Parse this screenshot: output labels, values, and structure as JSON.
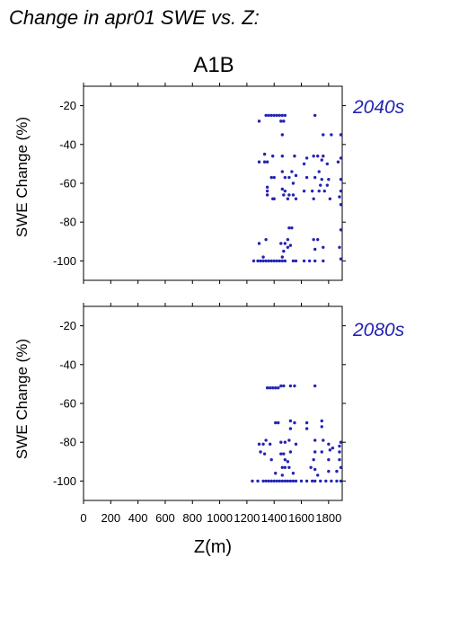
{
  "figure": {
    "suptitle": "Change in apr01 SWE vs. Z:",
    "scenario": "A1B",
    "xlabel": "Z(m)",
    "ylabel": "SWE Change (%)",
    "accent_color": "#2323b4"
  },
  "chart_data": [
    {
      "type": "scatter",
      "label": "2040s",
      "xlim": [
        0,
        1900
      ],
      "ylim": [
        -110,
        -10
      ],
      "xticks": [
        0,
        200,
        400,
        600,
        800,
        1000,
        1200,
        1400,
        1600,
        1800
      ],
      "yticks": [
        -20,
        -40,
        -60,
        -80,
        -100
      ],
      "points": [
        [
          1340,
          -25
        ],
        [
          1360,
          -25
        ],
        [
          1380,
          -25
        ],
        [
          1400,
          -25
        ],
        [
          1420,
          -25
        ],
        [
          1440,
          -25
        ],
        [
          1460,
          -25
        ],
        [
          1480,
          -25
        ],
        [
          1700,
          -25
        ],
        [
          1290,
          -28
        ],
        [
          1450,
          -28
        ],
        [
          1470,
          -28
        ],
        [
          1460,
          -35
        ],
        [
          1760,
          -35
        ],
        [
          1820,
          -35
        ],
        [
          1890,
          -35
        ],
        [
          1330,
          -45
        ],
        [
          1390,
          -46
        ],
        [
          1460,
          -46
        ],
        [
          1550,
          -46
        ],
        [
          1690,
          -46
        ],
        [
          1720,
          -46
        ],
        [
          1760,
          -46
        ],
        [
          1640,
          -47
        ],
        [
          1750,
          -48
        ],
        [
          1290,
          -49
        ],
        [
          1330,
          -49
        ],
        [
          1350,
          -49
        ],
        [
          1620,
          -50
        ],
        [
          1790,
          -50
        ],
        [
          1870,
          -49
        ],
        [
          1890,
          -47
        ],
        [
          1460,
          -54
        ],
        [
          1530,
          -54
        ],
        [
          1730,
          -54
        ],
        [
          1560,
          -56
        ],
        [
          1380,
          -57
        ],
        [
          1400,
          -57
        ],
        [
          1480,
          -57
        ],
        [
          1510,
          -57
        ],
        [
          1640,
          -57
        ],
        [
          1700,
          -57
        ],
        [
          1750,
          -58
        ],
        [
          1800,
          -58
        ],
        [
          1890,
          -58
        ],
        [
          1540,
          -60
        ],
        [
          1740,
          -61
        ],
        [
          1790,
          -61
        ],
        [
          1350,
          -62
        ],
        [
          1460,
          -63
        ],
        [
          1350,
          -64
        ],
        [
          1480,
          -64
        ],
        [
          1620,
          -64
        ],
        [
          1680,
          -64
        ],
        [
          1730,
          -64
        ],
        [
          1770,
          -64
        ],
        [
          1890,
          -64
        ],
        [
          1350,
          -66
        ],
        [
          1470,
          -66
        ],
        [
          1510,
          -66
        ],
        [
          1540,
          -66
        ],
        [
          1880,
          -67
        ],
        [
          1390,
          -68
        ],
        [
          1400,
          -68
        ],
        [
          1500,
          -68
        ],
        [
          1560,
          -68
        ],
        [
          1690,
          -68
        ],
        [
          1810,
          -68
        ],
        [
          1890,
          -71
        ],
        [
          1510,
          -83
        ],
        [
          1530,
          -83
        ],
        [
          1890,
          -84
        ],
        [
          1340,
          -89
        ],
        [
          1500,
          -89
        ],
        [
          1690,
          -89
        ],
        [
          1720,
          -89
        ],
        [
          1290,
          -91
        ],
        [
          1450,
          -91
        ],
        [
          1480,
          -91
        ],
        [
          1520,
          -92
        ],
        [
          1470,
          -95
        ],
        [
          1500,
          -93
        ],
        [
          1700,
          -94
        ],
        [
          1760,
          -93
        ],
        [
          1880,
          -93
        ],
        [
          1250,
          -100
        ],
        [
          1280,
          -100
        ],
        [
          1300,
          -100
        ],
        [
          1320,
          -100
        ],
        [
          1340,
          -100
        ],
        [
          1360,
          -100
        ],
        [
          1380,
          -100
        ],
        [
          1400,
          -100
        ],
        [
          1420,
          -100
        ],
        [
          1440,
          -100
        ],
        [
          1460,
          -100
        ],
        [
          1480,
          -100
        ],
        [
          1540,
          -100
        ],
        [
          1560,
          -100
        ],
        [
          1620,
          -100
        ],
        [
          1660,
          -100
        ],
        [
          1700,
          -100
        ],
        [
          1760,
          -100
        ],
        [
          1890,
          -99
        ],
        [
          1320,
          -98
        ],
        [
          1460,
          -98
        ]
      ]
    },
    {
      "type": "scatter",
      "label": "2080s",
      "xlim": [
        0,
        1900
      ],
      "ylim": [
        -110,
        -10
      ],
      "xticks": [
        0,
        200,
        400,
        600,
        800,
        1000,
        1200,
        1400,
        1600,
        1800
      ],
      "yticks": [
        -20,
        -40,
        -60,
        -80,
        -100
      ],
      "points": [
        [
          1350,
          -52
        ],
        [
          1370,
          -52
        ],
        [
          1390,
          -52
        ],
        [
          1410,
          -52
        ],
        [
          1430,
          -52
        ],
        [
          1450,
          -51
        ],
        [
          1470,
          -51
        ],
        [
          1520,
          -51
        ],
        [
          1550,
          -51
        ],
        [
          1700,
          -51
        ],
        [
          1410,
          -70
        ],
        [
          1430,
          -70
        ],
        [
          1520,
          -69
        ],
        [
          1550,
          -70
        ],
        [
          1640,
          -70
        ],
        [
          1750,
          -69
        ],
        [
          1640,
          -73
        ],
        [
          1750,
          -72
        ],
        [
          1520,
          -73
        ],
        [
          1340,
          -79
        ],
        [
          1290,
          -81
        ],
        [
          1320,
          -81
        ],
        [
          1370,
          -81
        ],
        [
          1450,
          -80
        ],
        [
          1480,
          -80
        ],
        [
          1510,
          -79
        ],
        [
          1560,
          -81
        ],
        [
          1700,
          -79
        ],
        [
          1760,
          -79
        ],
        [
          1800,
          -81
        ],
        [
          1890,
          -80
        ],
        [
          1880,
          -82
        ],
        [
          1300,
          -85
        ],
        [
          1330,
          -86
        ],
        [
          1450,
          -86
        ],
        [
          1470,
          -86
        ],
        [
          1520,
          -85
        ],
        [
          1700,
          -85
        ],
        [
          1750,
          -85
        ],
        [
          1810,
          -84
        ],
        [
          1830,
          -83
        ],
        [
          1880,
          -85
        ],
        [
          1380,
          -89
        ],
        [
          1480,
          -89
        ],
        [
          1500,
          -90
        ],
        [
          1690,
          -89
        ],
        [
          1800,
          -89
        ],
        [
          1880,
          -89
        ],
        [
          1460,
          -93
        ],
        [
          1480,
          -93
        ],
        [
          1510,
          -93
        ],
        [
          1670,
          -93
        ],
        [
          1700,
          -94
        ],
        [
          1800,
          -95
        ],
        [
          1890,
          -93
        ],
        [
          1410,
          -96
        ],
        [
          1460,
          -97
        ],
        [
          1540,
          -96
        ],
        [
          1720,
          -97
        ],
        [
          1860,
          -95
        ],
        [
          1240,
          -100
        ],
        [
          1280,
          -100
        ],
        [
          1320,
          -100
        ],
        [
          1340,
          -100
        ],
        [
          1360,
          -100
        ],
        [
          1380,
          -100
        ],
        [
          1400,
          -100
        ],
        [
          1420,
          -100
        ],
        [
          1440,
          -100
        ],
        [
          1460,
          -100
        ],
        [
          1480,
          -100
        ],
        [
          1500,
          -100
        ],
        [
          1520,
          -100
        ],
        [
          1540,
          -100
        ],
        [
          1560,
          -100
        ],
        [
          1600,
          -100
        ],
        [
          1640,
          -100
        ],
        [
          1680,
          -100
        ],
        [
          1700,
          -100
        ],
        [
          1740,
          -100
        ],
        [
          1780,
          -100
        ],
        [
          1820,
          -100
        ],
        [
          1860,
          -100
        ],
        [
          1890,
          -100
        ]
      ]
    }
  ]
}
